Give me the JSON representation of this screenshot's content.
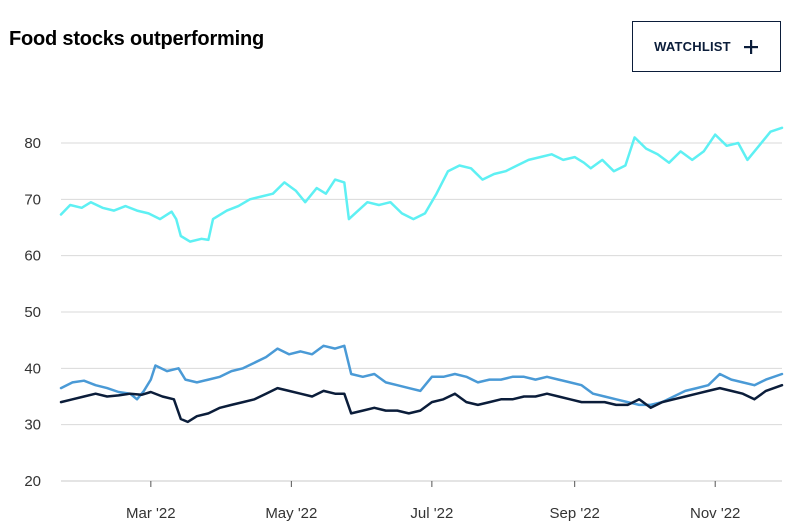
{
  "header": {
    "title": "Food stocks outperforming",
    "watchlist_label": "WATCHLIST",
    "watchlist_icon": "plus-icon"
  },
  "colors": {
    "axis_text": "#333333",
    "gridline": "#d9d9d9",
    "button_border": "#0b1d3a"
  },
  "chart_data": {
    "type": "line",
    "title": "Food stocks outperforming",
    "xlabel": "",
    "ylabel": "",
    "ylim": [
      20,
      88
    ],
    "xlim": [
      "2022-01-21",
      "2022-11-30"
    ],
    "grid": true,
    "y_ticks": [
      20,
      30,
      40,
      50,
      60,
      70,
      80
    ],
    "x_ticks": [
      {
        "date": "2022-03-01",
        "label": "Mar '22"
      },
      {
        "date": "2022-05-01",
        "label": "May '22"
      },
      {
        "date": "2022-07-01",
        "label": "Jul '22"
      },
      {
        "date": "2022-09-01",
        "label": "Sep '22"
      },
      {
        "date": "2022-11-01",
        "label": "Nov '22"
      }
    ],
    "series": [
      {
        "color": "#5ef0f3",
        "points": [
          [
            "2022-01-21",
            67.3
          ],
          [
            "2022-01-25",
            69
          ],
          [
            "2022-01-30",
            68.5
          ],
          [
            "2022-02-03",
            69.5
          ],
          [
            "2022-02-08",
            68.5
          ],
          [
            "2022-02-13",
            68
          ],
          [
            "2022-02-18",
            68.8
          ],
          [
            "2022-02-23",
            68
          ],
          [
            "2022-02-28",
            67.5
          ],
          [
            "2022-03-05",
            66.5
          ],
          [
            "2022-03-10",
            67.8
          ],
          [
            "2022-03-12",
            66.5
          ],
          [
            "2022-03-14",
            63.5
          ],
          [
            "2022-03-18",
            62.5
          ],
          [
            "2022-03-23",
            63
          ],
          [
            "2022-03-26",
            62.8
          ],
          [
            "2022-03-28",
            66.5
          ],
          [
            "2022-04-03",
            68
          ],
          [
            "2022-04-08",
            68.8
          ],
          [
            "2022-04-13",
            70
          ],
          [
            "2022-04-18",
            70.5
          ],
          [
            "2022-04-23",
            71
          ],
          [
            "2022-04-28",
            73
          ],
          [
            "2022-05-03",
            71.5
          ],
          [
            "2022-05-07",
            69.5
          ],
          [
            "2022-05-12",
            72
          ],
          [
            "2022-05-16",
            71
          ],
          [
            "2022-05-20",
            73.5
          ],
          [
            "2022-05-24",
            73
          ],
          [
            "2022-05-26",
            66.5
          ],
          [
            "2022-05-30",
            68
          ],
          [
            "2022-06-03",
            69.5
          ],
          [
            "2022-06-08",
            69
          ],
          [
            "2022-06-13",
            69.5
          ],
          [
            "2022-06-18",
            67.5
          ],
          [
            "2022-06-23",
            66.5
          ],
          [
            "2022-06-28",
            67.5
          ],
          [
            "2022-07-03",
            71
          ],
          [
            "2022-07-08",
            75
          ],
          [
            "2022-07-13",
            76
          ],
          [
            "2022-07-18",
            75.5
          ],
          [
            "2022-07-23",
            73.5
          ],
          [
            "2022-07-28",
            74.5
          ],
          [
            "2022-08-02",
            75
          ],
          [
            "2022-08-07",
            76
          ],
          [
            "2022-08-12",
            77
          ],
          [
            "2022-08-17",
            77.5
          ],
          [
            "2022-08-22",
            78
          ],
          [
            "2022-08-27",
            77
          ],
          [
            "2022-09-01",
            77.5
          ],
          [
            "2022-09-05",
            76.5
          ],
          [
            "2022-09-08",
            75.5
          ],
          [
            "2022-09-13",
            77
          ],
          [
            "2022-09-18",
            75
          ],
          [
            "2022-09-23",
            76
          ],
          [
            "2022-09-27",
            81
          ],
          [
            "2022-10-02",
            79
          ],
          [
            "2022-10-07",
            78
          ],
          [
            "2022-10-12",
            76.5
          ],
          [
            "2022-10-17",
            78.5
          ],
          [
            "2022-10-22",
            77
          ],
          [
            "2022-10-27",
            78.5
          ],
          [
            "2022-11-01",
            81.5
          ],
          [
            "2022-11-06",
            79.5
          ],
          [
            "2022-11-11",
            80
          ],
          [
            "2022-11-15",
            77
          ],
          [
            "2022-11-20",
            79.5
          ],
          [
            "2022-11-25",
            82
          ],
          [
            "2022-11-30",
            82.7
          ]
        ]
      },
      {
        "color": "#4a9ad6",
        "points": [
          [
            "2022-01-21",
            36.5
          ],
          [
            "2022-01-26",
            37.5
          ],
          [
            "2022-01-31",
            37.8
          ],
          [
            "2022-02-05",
            37
          ],
          [
            "2022-02-10",
            36.5
          ],
          [
            "2022-02-15",
            35.8
          ],
          [
            "2022-02-20",
            35.5
          ],
          [
            "2022-02-23",
            34.5
          ],
          [
            "2022-02-26",
            36
          ],
          [
            "2022-03-01",
            38
          ],
          [
            "2022-03-03",
            40.5
          ],
          [
            "2022-03-08",
            39.5
          ],
          [
            "2022-03-13",
            40
          ],
          [
            "2022-03-16",
            38
          ],
          [
            "2022-03-21",
            37.5
          ],
          [
            "2022-03-26",
            38
          ],
          [
            "2022-03-31",
            38.5
          ],
          [
            "2022-04-05",
            39.5
          ],
          [
            "2022-04-10",
            40
          ],
          [
            "2022-04-15",
            41
          ],
          [
            "2022-04-20",
            42
          ],
          [
            "2022-04-25",
            43.5
          ],
          [
            "2022-04-30",
            42.5
          ],
          [
            "2022-05-05",
            43
          ],
          [
            "2022-05-10",
            42.5
          ],
          [
            "2022-05-15",
            44
          ],
          [
            "2022-05-20",
            43.5
          ],
          [
            "2022-05-24",
            44
          ],
          [
            "2022-05-27",
            39
          ],
          [
            "2022-06-01",
            38.5
          ],
          [
            "2022-06-06",
            39
          ],
          [
            "2022-06-11",
            37.5
          ],
          [
            "2022-06-16",
            37
          ],
          [
            "2022-06-21",
            36.5
          ],
          [
            "2022-06-26",
            36
          ],
          [
            "2022-07-01",
            38.5
          ],
          [
            "2022-07-06",
            38.5
          ],
          [
            "2022-07-11",
            39
          ],
          [
            "2022-07-16",
            38.5
          ],
          [
            "2022-07-21",
            37.5
          ],
          [
            "2022-07-26",
            38
          ],
          [
            "2022-07-31",
            38
          ],
          [
            "2022-08-05",
            38.5
          ],
          [
            "2022-08-10",
            38.5
          ],
          [
            "2022-08-15",
            38
          ],
          [
            "2022-08-20",
            38.5
          ],
          [
            "2022-08-25",
            38
          ],
          [
            "2022-08-30",
            37.5
          ],
          [
            "2022-09-04",
            37
          ],
          [
            "2022-09-09",
            35.5
          ],
          [
            "2022-09-14",
            35
          ],
          [
            "2022-09-19",
            34.5
          ],
          [
            "2022-09-24",
            34
          ],
          [
            "2022-09-29",
            33.5
          ],
          [
            "2022-10-04",
            33.5
          ],
          [
            "2022-10-09",
            34
          ],
          [
            "2022-10-14",
            35
          ],
          [
            "2022-10-19",
            36
          ],
          [
            "2022-10-24",
            36.5
          ],
          [
            "2022-10-29",
            37
          ],
          [
            "2022-11-03",
            39
          ],
          [
            "2022-11-08",
            38
          ],
          [
            "2022-11-13",
            37.5
          ],
          [
            "2022-11-18",
            37
          ],
          [
            "2022-11-23",
            38
          ],
          [
            "2022-11-30",
            39
          ]
        ]
      },
      {
        "color": "#0b1d3a",
        "points": [
          [
            "2022-01-21",
            34
          ],
          [
            "2022-01-26",
            34.5
          ],
          [
            "2022-01-31",
            35
          ],
          [
            "2022-02-05",
            35.5
          ],
          [
            "2022-02-10",
            35
          ],
          [
            "2022-02-15",
            35.2
          ],
          [
            "2022-02-20",
            35.5
          ],
          [
            "2022-02-25",
            35.3
          ],
          [
            "2022-03-01",
            35.8
          ],
          [
            "2022-03-06",
            35
          ],
          [
            "2022-03-11",
            34.5
          ],
          [
            "2022-03-14",
            31
          ],
          [
            "2022-03-17",
            30.5
          ],
          [
            "2022-03-21",
            31.5
          ],
          [
            "2022-03-26",
            32
          ],
          [
            "2022-03-31",
            33
          ],
          [
            "2022-04-05",
            33.5
          ],
          [
            "2022-04-10",
            34
          ],
          [
            "2022-04-15",
            34.5
          ],
          [
            "2022-04-20",
            35.5
          ],
          [
            "2022-04-25",
            36.5
          ],
          [
            "2022-04-30",
            36
          ],
          [
            "2022-05-05",
            35.5
          ],
          [
            "2022-05-10",
            35
          ],
          [
            "2022-05-15",
            36
          ],
          [
            "2022-05-20",
            35.5
          ],
          [
            "2022-05-24",
            35.5
          ],
          [
            "2022-05-27",
            32
          ],
          [
            "2022-06-01",
            32.5
          ],
          [
            "2022-06-06",
            33
          ],
          [
            "2022-06-11",
            32.5
          ],
          [
            "2022-06-16",
            32.5
          ],
          [
            "2022-06-21",
            32
          ],
          [
            "2022-06-26",
            32.5
          ],
          [
            "2022-07-01",
            34
          ],
          [
            "2022-07-06",
            34.5
          ],
          [
            "2022-07-11",
            35.5
          ],
          [
            "2022-07-16",
            34
          ],
          [
            "2022-07-21",
            33.5
          ],
          [
            "2022-07-26",
            34
          ],
          [
            "2022-07-31",
            34.5
          ],
          [
            "2022-08-05",
            34.5
          ],
          [
            "2022-08-10",
            35
          ],
          [
            "2022-08-15",
            35
          ],
          [
            "2022-08-20",
            35.5
          ],
          [
            "2022-08-25",
            35
          ],
          [
            "2022-08-30",
            34.5
          ],
          [
            "2022-09-04",
            34
          ],
          [
            "2022-09-09",
            34
          ],
          [
            "2022-09-14",
            34
          ],
          [
            "2022-09-19",
            33.5
          ],
          [
            "2022-09-24",
            33.5
          ],
          [
            "2022-09-29",
            34.5
          ],
          [
            "2022-10-04",
            33
          ],
          [
            "2022-10-09",
            34
          ],
          [
            "2022-10-14",
            34.5
          ],
          [
            "2022-10-19",
            35
          ],
          [
            "2022-10-24",
            35.5
          ],
          [
            "2022-10-29",
            36
          ],
          [
            "2022-11-03",
            36.5
          ],
          [
            "2022-11-08",
            36
          ],
          [
            "2022-11-13",
            35.5
          ],
          [
            "2022-11-18",
            34.5
          ],
          [
            "2022-11-23",
            36
          ],
          [
            "2022-11-30",
            37
          ]
        ]
      }
    ]
  }
}
